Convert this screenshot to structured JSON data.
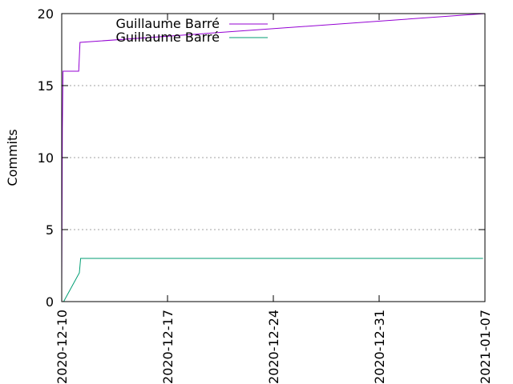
{
  "chart_data": {
    "type": "line",
    "title": "",
    "xlabel": "",
    "ylabel": "Commits",
    "x_type": "date",
    "xlim": [
      "2020-12-10",
      "2021-01-07"
    ],
    "ylim": [
      0,
      20
    ],
    "xticks": [
      "2020-12-10",
      "2020-12-17",
      "2020-12-24",
      "2020-12-31",
      "2021-01-07"
    ],
    "yticks": [
      0,
      5,
      10,
      15,
      20
    ],
    "grid": "horizontal dotted",
    "legend": "top-left",
    "series": [
      {
        "name": "Guillaume Barré",
        "color": "#9400d3",
        "points": [
          [
            "2020-12-10T00:00",
            1
          ],
          [
            "2020-12-10T01:00",
            12
          ],
          [
            "2020-12-10T02:00",
            16
          ],
          [
            "2020-12-11T03:00",
            16
          ],
          [
            "2020-12-11T05:00",
            18
          ],
          [
            "2021-01-07T00:00",
            20
          ]
        ]
      },
      {
        "name": "Guillaume Barré",
        "color": "#009e73",
        "points": [
          [
            "2020-12-10T03:00",
            0
          ],
          [
            "2020-12-11T04:00",
            2
          ],
          [
            "2020-12-11T06:00",
            3
          ],
          [
            "2021-01-06T21:00",
            3
          ]
        ]
      }
    ]
  }
}
